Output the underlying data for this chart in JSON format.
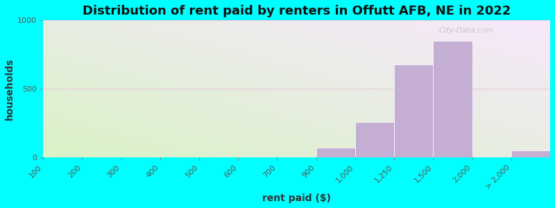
{
  "title": "Distribution of rent paid by renters in Offutt AFB, NE in 2022",
  "xlabel": "rent paid ($)",
  "ylabel": "households",
  "fig_bg_color": "#00FFFF",
  "bar_color": "#c4aed4",
  "bar_edge_color": "white",
  "tick_labels": [
    "100",
    "200",
    "300",
    "400",
    "500",
    "600",
    "700",
    "900",
    "1,000",
    "1,250",
    "1,500",
    "2,000",
    "> 2,000"
  ],
  "tick_positions": [
    0,
    1,
    2,
    3,
    4,
    5,
    6,
    7,
    8,
    9,
    10,
    11,
    12
  ],
  "bar_lefts": [
    0,
    1,
    2,
    3,
    4,
    5,
    6,
    7,
    8,
    9,
    10,
    12
  ],
  "bar_widths": [
    1,
    1,
    1,
    1,
    1,
    1,
    1,
    1,
    1,
    1,
    1,
    1
  ],
  "bar_heights": [
    3,
    3,
    3,
    3,
    3,
    3,
    3,
    75,
    260,
    680,
    850,
    55
  ],
  "ylim": [
    0,
    1000
  ],
  "yticks": [
    0,
    500,
    1000
  ],
  "title_fontsize": 13,
  "axis_label_fontsize": 10,
  "tick_fontsize": 8,
  "watermark": "City-Data.com",
  "grad_color_topleft": [
    0.85,
    0.95,
    0.78
  ],
  "grad_color_bottomright": [
    0.97,
    0.91,
    0.99
  ]
}
